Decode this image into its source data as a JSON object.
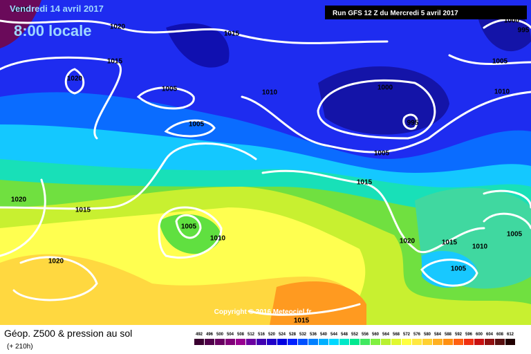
{
  "header": {
    "date": "Vendredi 14 avril 2017",
    "time": "8:00 locale",
    "run": "Run GFS 12 Z du Mercredi 5 avril 2017"
  },
  "copyright": "Copyright © 2016 Meteociel.fr",
  "isobar_labels": [
    "1010",
    "1020",
    "1015",
    "1015",
    "1020",
    "1005",
    "1010",
    "1000",
    "995",
    "1005",
    "1005",
    "1015",
    "1020",
    "1015",
    "1005",
    "1010",
    "1020",
    "1015",
    "1010",
    "1005",
    "1005",
    "1020",
    "1015",
    "1005",
    "1010",
    "995",
    "1000"
  ],
  "legend": {
    "title": "Géop. Z500 & pression au sol",
    "subtitle": "(+ 210h)",
    "scale": [
      492,
      496,
      500,
      504,
      508,
      512,
      516,
      520,
      524,
      528,
      532,
      536,
      540,
      544,
      548,
      552,
      556,
      560,
      564,
      568,
      572,
      576,
      580,
      584,
      588,
      592,
      596,
      600,
      604,
      608,
      612
    ]
  }
}
